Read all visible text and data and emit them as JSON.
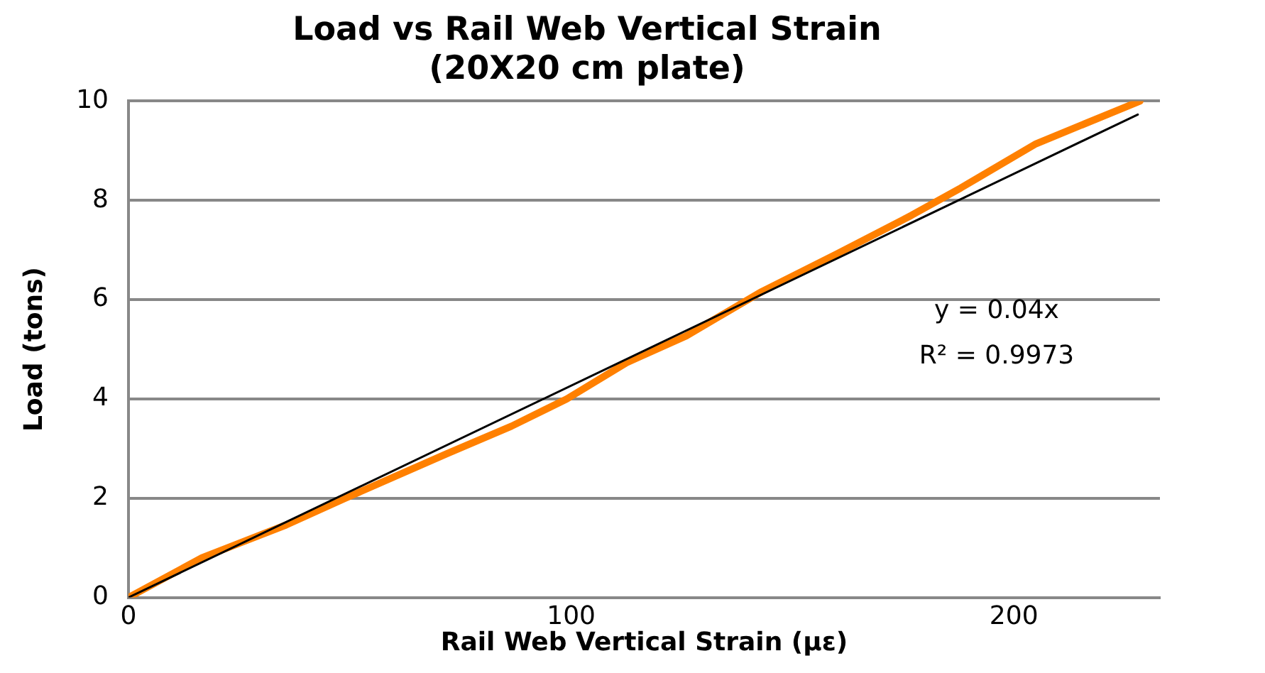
{
  "chart_data": {
    "type": "line",
    "title": "Load vs Rail Web Vertical Strain\n(20X20 cm plate)",
    "xlabel": "Rail Web Vertical Strain (με)",
    "ylabel": "Load (tons)",
    "xlim": [
      0,
      233
    ],
    "xticks": [
      0,
      100,
      200
    ],
    "ylim": [
      0,
      10
    ],
    "yticks": [
      0,
      2,
      4,
      6,
      8,
      10
    ],
    "grid": "y",
    "legend": false,
    "marker": "none",
    "series": [
      {
        "color": "#ff8000",
        "x": [
          0,
          16.6,
          35.6,
          49,
          72,
          86.5,
          99,
          112.5,
          126,
          143,
          160,
          176.9,
          188,
          205,
          228.5
        ],
        "values": [
          0,
          0.8,
          1.46,
          2.0,
          2.9,
          3.45,
          4.0,
          4.73,
          5.27,
          6.16,
          6.92,
          7.7,
          8.25,
          9.14,
          10.0
        ]
      },
      {
        "color": "#000000",
        "x": [
          0,
          228
        ],
        "values": [
          0,
          9.73
        ]
      }
    ],
    "annotations": [
      "y = 0.04x",
      "R² = 0.9973"
    ]
  }
}
